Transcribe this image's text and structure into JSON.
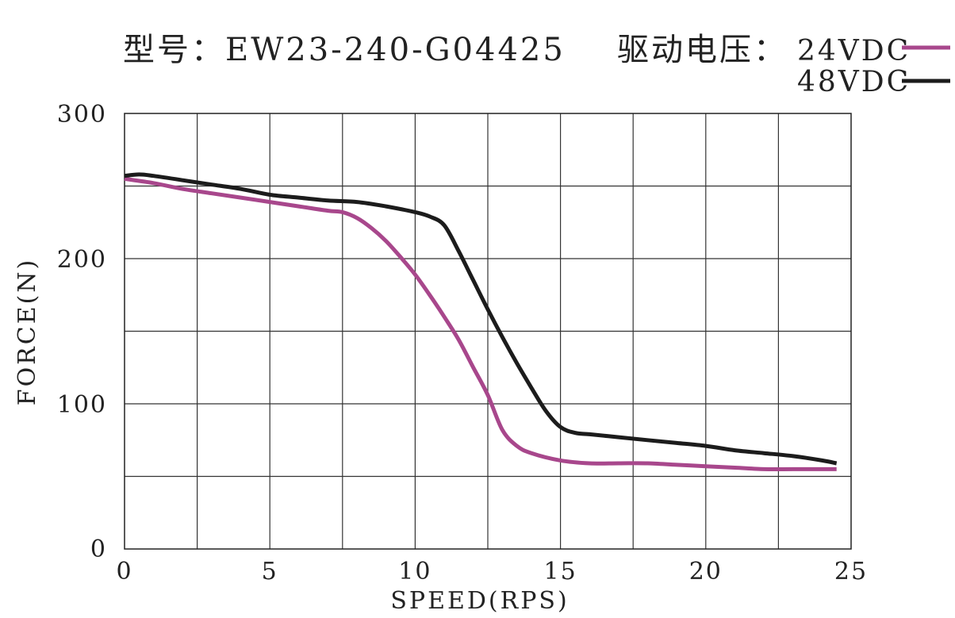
{
  "header": {
    "model": "型号：EW23-240-G04425",
    "voltage_label": "驱动电压：",
    "legend_24": "24VDC",
    "legend_48": "48VDC"
  },
  "chart_data": {
    "type": "line",
    "xlabel": "SPEED(RPS)",
    "ylabel": "FORCE(N)",
    "xlim": [
      0,
      25
    ],
    "ylim": [
      0,
      300
    ],
    "x_ticks": [
      0,
      5,
      10,
      15,
      20,
      25
    ],
    "x_tick_labels": [
      "0",
      "5",
      "10",
      "15",
      "20",
      "25"
    ],
    "y_ticks": [
      0,
      100,
      200,
      300
    ],
    "y_tick_labels": [
      "0",
      "100",
      "200",
      "300"
    ],
    "x_grid_step": 2.5,
    "y_grid_step": 50,
    "grid": true,
    "legend_position": "top-right",
    "series": [
      {
        "name": "24VDC",
        "color": "#a8478c",
        "x": [
          0,
          1,
          2,
          3,
          4,
          5,
          6,
          7,
          7.5,
          8,
          8.5,
          9,
          9.5,
          10,
          10.5,
          11,
          11.5,
          12,
          12.5,
          13,
          13.5,
          14,
          15,
          16,
          17,
          18,
          19,
          20,
          21,
          22,
          23,
          24,
          24.5
        ],
        "y": [
          255,
          252,
          248,
          245,
          242,
          239,
          236,
          233,
          232,
          228,
          221,
          212,
          201,
          189,
          175,
          160,
          144,
          125,
          106,
          82,
          71,
          66,
          61,
          59,
          59,
          59,
          58,
          57,
          56,
          55,
          55,
          55,
          55
        ]
      },
      {
        "name": "48VDC",
        "color": "#1c1c1c",
        "x": [
          0,
          0.5,
          1,
          2,
          3,
          4,
          5,
          6,
          7,
          8,
          9,
          10,
          10.5,
          11,
          11.5,
          12,
          12.5,
          13,
          13.5,
          14,
          14.5,
          15,
          15.5,
          16,
          17,
          18,
          19,
          20,
          21,
          22,
          23,
          24,
          24.5
        ],
        "y": [
          257,
          258,
          257,
          254,
          251,
          248,
          244,
          242,
          240,
          239,
          236,
          232,
          229,
          223,
          205,
          185,
          165,
          146,
          128,
          111,
          95,
          84,
          80,
          79,
          77,
          75,
          73,
          71,
          68,
          66,
          64,
          61,
          59
        ]
      }
    ]
  }
}
